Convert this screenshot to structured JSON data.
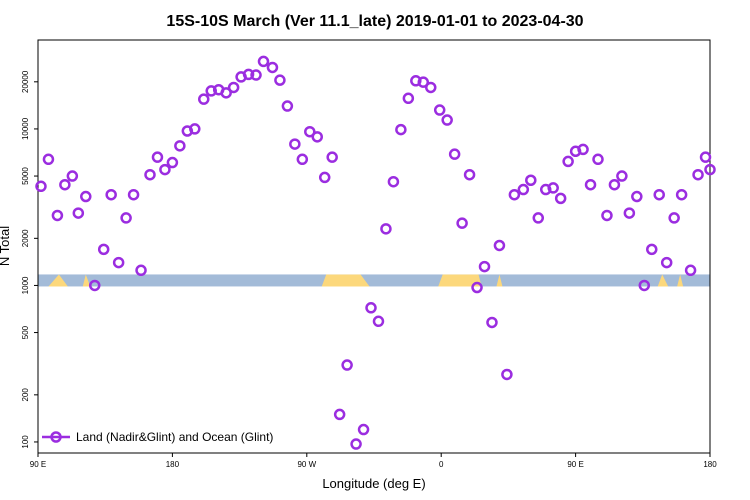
{
  "chart_data": {
    "type": "scatter",
    "title": "15S-10S March (Ver 11.1_late)   2019-01-01 to 2023-04-30",
    "xlabel": "Longitude (deg E)",
    "ylabel": "N Total",
    "y_scale": "log",
    "x_ticks": [
      {
        "value": 90,
        "label": "90 E"
      },
      {
        "value": 180,
        "label": "180"
      },
      {
        "value": 270,
        "label": "90 W"
      },
      {
        "value": 360,
        "label": "0"
      },
      {
        "value": 450,
        "label": "90 E"
      },
      {
        "value": 540,
        "label": "180"
      }
    ],
    "y_ticks": [
      100,
      200,
      500,
      1000,
      2000,
      5000,
      10000,
      20000
    ],
    "xlim": [
      90,
      540
    ],
    "ylim": [
      85,
      37000
    ],
    "legend": {
      "position": "bottom-left",
      "label": "Land (Nadir&Glint) and Ocean (Glint)"
    },
    "colors": {
      "series": "#9b2de0",
      "ocean": "#a3bbd8",
      "land": "#fcd87c"
    },
    "series": [
      {
        "name": "Land (Nadir&Glint) and Ocean (Glint)",
        "x": [
          92,
          97,
          103,
          108,
          113,
          117,
          122,
          128,
          134,
          139,
          144,
          149,
          154,
          159,
          165,
          170,
          175,
          180,
          185,
          190,
          195,
          201,
          206,
          211,
          216,
          221,
          226,
          231,
          236,
          241,
          247,
          252,
          257,
          262,
          267,
          272,
          277,
          282,
          287,
          292,
          297,
          303,
          308,
          313,
          318,
          323,
          328,
          333,
          338,
          343,
          348,
          353,
          359,
          364,
          369,
          374,
          379,
          384,
          389,
          394,
          399,
          404,
          409,
          415,
          420,
          425,
          430,
          435,
          440,
          445,
          450,
          455,
          460,
          465,
          471,
          476,
          481,
          486,
          491,
          496,
          501,
          506,
          511,
          516,
          521,
          527,
          532,
          537,
          540
        ],
        "y": [
          4300,
          6400,
          2800,
          4400,
          5000,
          2900,
          3700,
          1000,
          1700,
          3800,
          1400,
          2700,
          3800,
          1250,
          5100,
          6600,
          5500,
          6100,
          7800,
          9700,
          10000,
          15500,
          17500,
          17800,
          17000,
          18400,
          21500,
          22300,
          22100,
          27000,
          24700,
          20500,
          14000,
          8000,
          6400,
          9600,
          8900,
          4900,
          6600,
          150,
          310,
          97,
          120,
          720,
          590,
          2300,
          4600,
          9900,
          15700,
          20300,
          19900,
          18400,
          13200,
          11400,
          6900,
          2500,
          5100,
          970,
          1320,
          580,
          1800,
          270,
          3800,
          4100,
          4700,
          2700,
          4100,
          4200,
          3600,
          6200,
          7200,
          7400,
          4400,
          6400,
          2800,
          4400,
          5000,
          2900,
          3700,
          1000,
          1700,
          3800,
          1400,
          2700,
          3800,
          1250,
          5100,
          6600,
          5500
        ]
      }
    ]
  }
}
